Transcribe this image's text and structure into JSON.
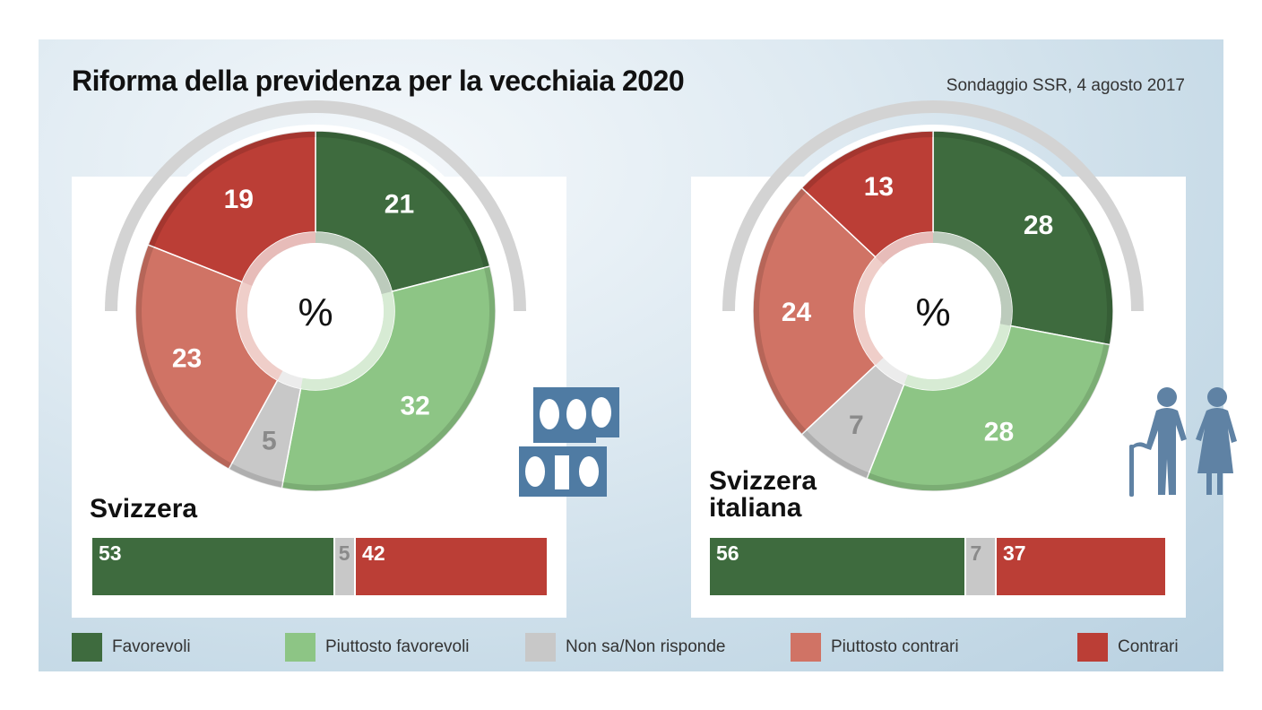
{
  "title": "Riforma della previdenza per la vecchiaia 2020",
  "subtitle": "Sondaggio SSR, 4 agosto 2017",
  "colors": {
    "favorevoli": "#3e6b3e",
    "piuttosto_favorevoli": "#8dc585",
    "non_sa": "#c8c8c8",
    "piuttosto_contrari": "#d07365",
    "contrari": "#bb3e36"
  },
  "chart_data": [
    {
      "type": "pie",
      "region": "Svizzera",
      "center_label": "%",
      "categories": [
        "Favorevoli",
        "Piuttosto favorevoli",
        "Non sa/Non risponde",
        "Piuttosto contrari",
        "Contrari"
      ],
      "values": [
        21,
        32,
        5,
        23,
        19
      ],
      "bar": {
        "values": [
          53,
          5,
          42
        ],
        "labels": [
          "53",
          "5",
          "42"
        ]
      }
    },
    {
      "type": "pie",
      "region": "Svizzera italiana",
      "center_label": "%",
      "categories": [
        "Favorevoli",
        "Piuttosto favorevoli",
        "Non sa/Non risponde",
        "Piuttosto contrari",
        "Contrari"
      ],
      "values": [
        28,
        28,
        7,
        24,
        13
      ],
      "bar": {
        "values": [
          56,
          7,
          37
        ],
        "labels": [
          "56",
          "7",
          "37"
        ]
      }
    }
  ],
  "regions": {
    "left": "Svizzera",
    "right_line1": "Svizzera",
    "right_line2": "italiana"
  },
  "legend": [
    {
      "label": "Favorevoli",
      "color": "#3e6b3e"
    },
    {
      "label": "Piuttosto favorevoli",
      "color": "#8dc585"
    },
    {
      "label": "Non sa/Non risponde",
      "color": "#c8c8c8"
    },
    {
      "label": "Piuttosto contrari",
      "color": "#d07365"
    },
    {
      "label": "Contrari",
      "color": "#bb3e36"
    }
  ],
  "icons": {
    "left": "ballot-icon",
    "right": "elderly-couple-icon"
  }
}
